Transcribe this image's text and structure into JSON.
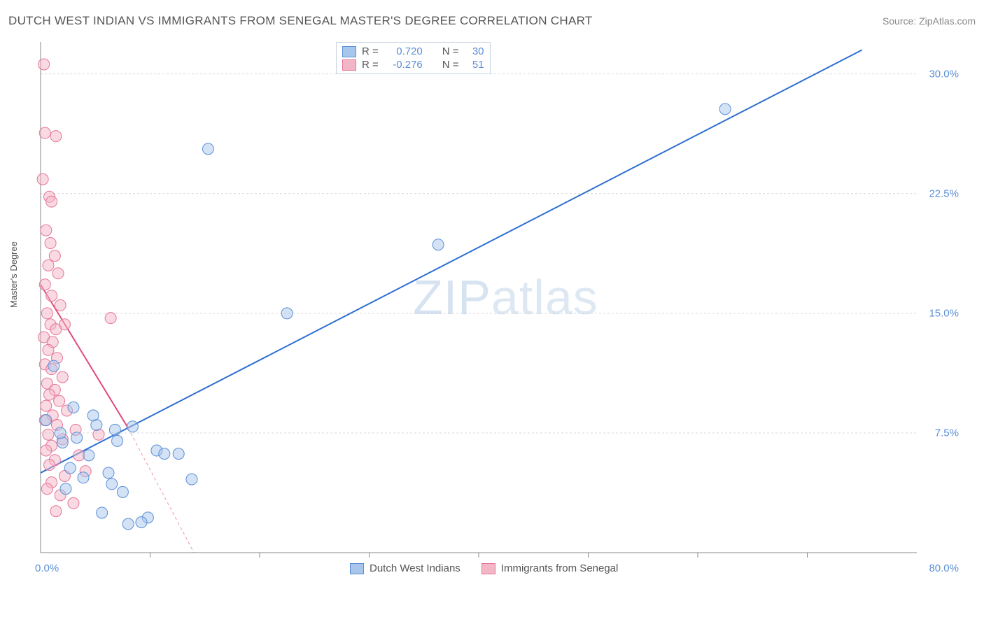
{
  "title": "DUTCH WEST INDIAN VS IMMIGRANTS FROM SENEGAL MASTER'S DEGREE CORRELATION CHART",
  "source": "Source: ZipAtlas.com",
  "ylabel": "Master's Degree",
  "watermark_zip": "ZIP",
  "watermark_atlas": "atlas",
  "chart": {
    "type": "scatter",
    "xlim": [
      0,
      80
    ],
    "ylim": [
      0,
      32
    ],
    "yticks": [
      7.5,
      15.0,
      22.5,
      30.0
    ],
    "ytick_labels": [
      "7.5%",
      "15.0%",
      "22.5%",
      "30.0%"
    ],
    "xtick_left": "0.0%",
    "xtick_right": "80.0%",
    "xaxis_minor": [
      10,
      20,
      30,
      40,
      50,
      60,
      70
    ],
    "grid_color": "#d9d9d9",
    "axis_color": "#888888",
    "background": "#ffffff",
    "marker_radius": 8,
    "marker_opacity": 0.5,
    "line_width": 2,
    "series": [
      {
        "name": "Dutch West Indians",
        "color_fill": "#a8c6ec",
        "color_stroke": "#5b8fd6",
        "line_color": "#2e6fd1",
        "R": "0.720",
        "N": "30",
        "trend": {
          "x1": 0,
          "y1": 5.0,
          "x2": 75,
          "y2": 31.5
        },
        "points": [
          {
            "x": 0.5,
            "y": 8.3
          },
          {
            "x": 1.2,
            "y": 11.7
          },
          {
            "x": 2.0,
            "y": 6.9
          },
          {
            "x": 2.7,
            "y": 5.3
          },
          {
            "x": 3.3,
            "y": 7.2
          },
          {
            "x": 3.9,
            "y": 4.7
          },
          {
            "x": 4.4,
            "y": 6.1
          },
          {
            "x": 5.1,
            "y": 8.0
          },
          {
            "x": 5.6,
            "y": 2.5
          },
          {
            "x": 6.2,
            "y": 5.0
          },
          {
            "x": 6.8,
            "y": 7.7
          },
          {
            "x": 7.5,
            "y": 3.8
          },
          {
            "x": 8.4,
            "y": 7.9
          },
          {
            "x": 8.0,
            "y": 1.8
          },
          {
            "x": 9.8,
            "y": 2.2
          },
          {
            "x": 10.6,
            "y": 6.4
          },
          {
            "x": 11.3,
            "y": 6.2
          },
          {
            "x": 12.6,
            "y": 6.2
          },
          {
            "x": 13.8,
            "y": 4.6
          },
          {
            "x": 15.3,
            "y": 25.3
          },
          {
            "x": 22.5,
            "y": 15.0
          },
          {
            "x": 36.3,
            "y": 19.3
          },
          {
            "x": 62.5,
            "y": 27.8
          },
          {
            "x": 3.0,
            "y": 9.1
          },
          {
            "x": 4.8,
            "y": 8.6
          },
          {
            "x": 2.3,
            "y": 4.0
          },
          {
            "x": 6.5,
            "y": 4.3
          },
          {
            "x": 1.8,
            "y": 7.5
          },
          {
            "x": 9.2,
            "y": 1.9
          },
          {
            "x": 7.0,
            "y": 7.0
          }
        ]
      },
      {
        "name": "Immigrants from Senegal",
        "color_fill": "#f3b6c6",
        "color_stroke": "#e77599",
        "line_color": "#e24b7a",
        "R": "-0.276",
        "N": "51",
        "trend": {
          "x1": 0,
          "y1": 16.8,
          "x2": 8,
          "y2": 7.8
        },
        "trend_dash": {
          "x1": 8,
          "y1": 7.8,
          "x2": 14,
          "y2": 0
        },
        "points": [
          {
            "x": 0.3,
            "y": 30.6
          },
          {
            "x": 0.4,
            "y": 26.3
          },
          {
            "x": 1.4,
            "y": 26.1
          },
          {
            "x": 0.2,
            "y": 23.4
          },
          {
            "x": 0.8,
            "y": 22.3
          },
          {
            "x": 1.0,
            "y": 22.0
          },
          {
            "x": 0.5,
            "y": 20.2
          },
          {
            "x": 0.9,
            "y": 19.4
          },
          {
            "x": 1.3,
            "y": 18.6
          },
          {
            "x": 0.7,
            "y": 18.0
          },
          {
            "x": 1.6,
            "y": 17.5
          },
          {
            "x": 0.4,
            "y": 16.8
          },
          {
            "x": 1.0,
            "y": 16.1
          },
          {
            "x": 1.8,
            "y": 15.5
          },
          {
            "x": 0.6,
            "y": 15.0
          },
          {
            "x": 2.2,
            "y": 14.3
          },
          {
            "x": 0.9,
            "y": 14.3
          },
          {
            "x": 1.4,
            "y": 14.0
          },
          {
            "x": 6.4,
            "y": 14.7
          },
          {
            "x": 0.3,
            "y": 13.5
          },
          {
            "x": 1.1,
            "y": 13.2
          },
          {
            "x": 0.7,
            "y": 12.7
          },
          {
            "x": 1.5,
            "y": 12.2
          },
          {
            "x": 0.4,
            "y": 11.8
          },
          {
            "x": 1.0,
            "y": 11.5
          },
          {
            "x": 2.0,
            "y": 11.0
          },
          {
            "x": 0.6,
            "y": 10.6
          },
          {
            "x": 1.3,
            "y": 10.2
          },
          {
            "x": 0.8,
            "y": 9.9
          },
          {
            "x": 1.7,
            "y": 9.5
          },
          {
            "x": 0.5,
            "y": 9.2
          },
          {
            "x": 2.4,
            "y": 8.9
          },
          {
            "x": 1.1,
            "y": 8.6
          },
          {
            "x": 0.4,
            "y": 8.3
          },
          {
            "x": 1.5,
            "y": 8.0
          },
          {
            "x": 3.2,
            "y": 7.7
          },
          {
            "x": 0.7,
            "y": 7.4
          },
          {
            "x": 2.0,
            "y": 7.1
          },
          {
            "x": 5.3,
            "y": 7.4
          },
          {
            "x": 1.0,
            "y": 6.7
          },
          {
            "x": 0.5,
            "y": 6.4
          },
          {
            "x": 3.5,
            "y": 6.1
          },
          {
            "x": 1.3,
            "y": 5.8
          },
          {
            "x": 0.8,
            "y": 5.5
          },
          {
            "x": 4.1,
            "y": 5.1
          },
          {
            "x": 2.2,
            "y": 4.8
          },
          {
            "x": 1.0,
            "y": 4.4
          },
          {
            "x": 0.6,
            "y": 4.0
          },
          {
            "x": 1.8,
            "y": 3.6
          },
          {
            "x": 3.0,
            "y": 3.1
          },
          {
            "x": 1.4,
            "y": 2.6
          }
        ]
      }
    ]
  },
  "legend_top": {
    "R_label": "R =",
    "N_label": "N ="
  },
  "legend_bottom": [
    "Dutch West Indians",
    "Immigrants from Senegal"
  ]
}
